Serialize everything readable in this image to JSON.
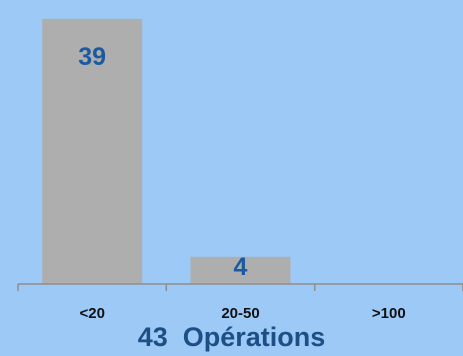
{
  "chart_data": {
    "type": "bar",
    "categories": [
      "<20",
      "20-50",
      ">100"
    ],
    "values": [
      39,
      4,
      0
    ],
    "data_labels": [
      "39",
      "4",
      ""
    ],
    "xlabel": "",
    "ylabel": "",
    "ylim": [
      0,
      40
    ],
    "grid": false,
    "legend": "none",
    "caption_count": "43",
    "caption_text": "Opérations"
  },
  "colors": {
    "background": "#9cc9f6",
    "bar": "#aeaeae",
    "value_label": "#1c5aa0",
    "caption": "#1c4f86"
  }
}
